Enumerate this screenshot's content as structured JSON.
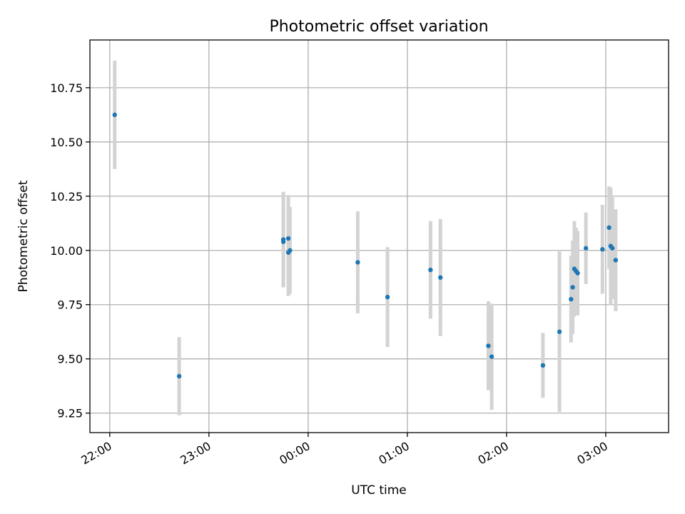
{
  "chart_data": {
    "type": "scatter",
    "title": "Photometric offset variation",
    "xlabel": "UTC time",
    "ylabel": "Photometric offset",
    "x_axis": {
      "type": "time",
      "range": [
        "21:48",
        "03:38"
      ],
      "ticks": [
        {
          "value": "22:00",
          "label": "22:00"
        },
        {
          "value": "23:00",
          "label": "23:00"
        },
        {
          "value": "00:00",
          "label": "00:00"
        },
        {
          "value": "01:00",
          "label": "01:00"
        },
        {
          "value": "02:00",
          "label": "02:00"
        },
        {
          "value": "03:00",
          "label": "03:00"
        }
      ]
    },
    "y_axis": {
      "range": [
        9.16,
        10.97
      ],
      "ticks": [
        {
          "value": 9.25,
          "label": "9.25"
        },
        {
          "value": 9.5,
          "label": "9.50"
        },
        {
          "value": 9.75,
          "label": "9.75"
        },
        {
          "value": 10.0,
          "label": "10.00"
        },
        {
          "value": 10.25,
          "label": "10.25"
        },
        {
          "value": 10.5,
          "label": "10.50"
        },
        {
          "value": 10.75,
          "label": "10.75"
        }
      ]
    },
    "grid": true,
    "marker_color": "#1f77b4",
    "errorbar_color": "#d3d3d3",
    "points": [
      {
        "x": "22:03",
        "y": 10.625,
        "err": 0.25
      },
      {
        "x": "22:42",
        "y": 9.42,
        "err": 0.18
      },
      {
        "x": "23:45",
        "y": 10.04,
        "err": 0.21
      },
      {
        "x": "23:45",
        "y": 10.05,
        "err": 0.22
      },
      {
        "x": "23:48",
        "y": 9.99,
        "err": 0.2
      },
      {
        "x": "23:48",
        "y": 10.055,
        "err": 0.2
      },
      {
        "x": "23:49",
        "y": 10.0,
        "err": 0.2
      },
      {
        "x": "00:30",
        "y": 9.945,
        "err": 0.235
      },
      {
        "x": "00:48",
        "y": 9.785,
        "err": 0.23
      },
      {
        "x": "01:14",
        "y": 9.91,
        "err": 0.225
      },
      {
        "x": "01:20",
        "y": 9.875,
        "err": 0.27
      },
      {
        "x": "01:49",
        "y": 9.56,
        "err": 0.205
      },
      {
        "x": "01:51",
        "y": 9.51,
        "err": 0.245
      },
      {
        "x": "02:22",
        "y": 9.47,
        "err": 0.15
      },
      {
        "x": "02:32",
        "y": 9.625,
        "err": 0.37
      },
      {
        "x": "02:39",
        "y": 9.775,
        "err": 0.2
      },
      {
        "x": "02:40",
        "y": 9.83,
        "err": 0.215
      },
      {
        "x": "02:41",
        "y": 9.915,
        "err": 0.22
      },
      {
        "x": "02:42",
        "y": 9.905,
        "err": 0.2
      },
      {
        "x": "02:43",
        "y": 9.895,
        "err": 0.195
      },
      {
        "x": "02:48",
        "y": 10.01,
        "err": 0.165
      },
      {
        "x": "02:58",
        "y": 10.005,
        "err": 0.205
      },
      {
        "x": "03:02",
        "y": 10.105,
        "err": 0.19
      },
      {
        "x": "03:03",
        "y": 10.02,
        "err": 0.27
      },
      {
        "x": "03:04",
        "y": 10.01,
        "err": 0.235
      },
      {
        "x": "03:06",
        "y": 9.955,
        "err": 0.235
      }
    ]
  }
}
